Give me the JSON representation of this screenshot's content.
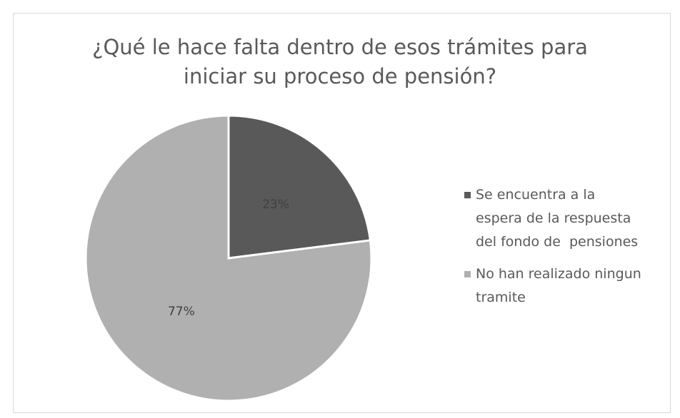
{
  "chart_data": {
    "type": "pie",
    "title": "¿Qué le hace falta dentro de esos trámites para iniciar su proceso de pensión?",
    "categories": [
      "Se encuentra a la espera de la respuesta del fondo de  pensiones",
      "No han realizado ningun tramite"
    ],
    "values": [
      23,
      77
    ],
    "value_labels": [
      "23%",
      "77%"
    ],
    "colors": [
      "#595959",
      "#b0b0b0"
    ],
    "legend": "right"
  }
}
